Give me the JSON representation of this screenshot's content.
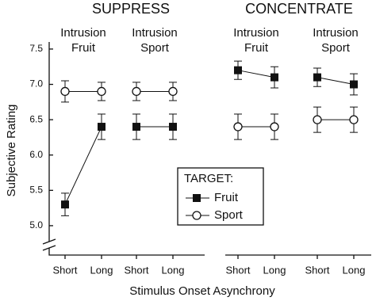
{
  "chart_data": {
    "type": "line",
    "y_label": "Subjective Rating",
    "x_label": "Stimulus Onset Asynchrony",
    "ylim": [
      4.6,
      7.6
    ],
    "yticks": [
      {
        "value": 5,
        "label": "5.0"
      },
      5.5,
      {
        "value": 6,
        "label": "6.0"
      },
      6.5,
      {
        "value": 7,
        "label": "7.0"
      },
      7.5
    ],
    "legend_title": "TARGET:",
    "series": [
      {
        "name": "Fruit",
        "marker": "square",
        "color": "#111111"
      },
      {
        "name": "Sport",
        "marker": "circle",
        "color": "#111111"
      }
    ],
    "groups": [
      {
        "name": "SUPPRESS",
        "panels": [
          {
            "title": [
              "Intrusion",
              "Fruit"
            ],
            "categories": [
              "Short",
              "Long"
            ],
            "values": [
              [
                5.3,
                6.4
              ],
              [
                6.9,
                6.9
              ]
            ],
            "errors": [
              [
                0.16,
                0.18
              ],
              [
                0.15,
                0.13
              ]
            ]
          },
          {
            "title": [
              "Intrusion",
              "Sport"
            ],
            "categories": [
              "Short",
              "Long"
            ],
            "values": [
              [
                6.4,
                6.4
              ],
              [
                6.9,
                6.9
              ]
            ],
            "errors": [
              [
                0.18,
                0.18
              ],
              [
                0.13,
                0.13
              ]
            ]
          }
        ]
      },
      {
        "name": "CONCENTRATE",
        "panels": [
          {
            "title": [
              "Intrusion",
              "Fruit"
            ],
            "categories": [
              "Short",
              "Long"
            ],
            "values": [
              [
                7.2,
                7.1
              ],
              [
                6.4,
                6.4
              ]
            ],
            "errors": [
              [
                0.13,
                0.15
              ],
              [
                0.18,
                0.18
              ]
            ]
          },
          {
            "title": [
              "Intrusion",
              "Sport"
            ],
            "categories": [
              "Short",
              "Long"
            ],
            "values": [
              [
                7.1,
                7.0
              ],
              [
                6.5,
                6.5
              ]
            ],
            "errors": [
              [
                0.13,
                0.15
              ],
              [
                0.18,
                0.18
              ]
            ]
          }
        ]
      }
    ]
  }
}
